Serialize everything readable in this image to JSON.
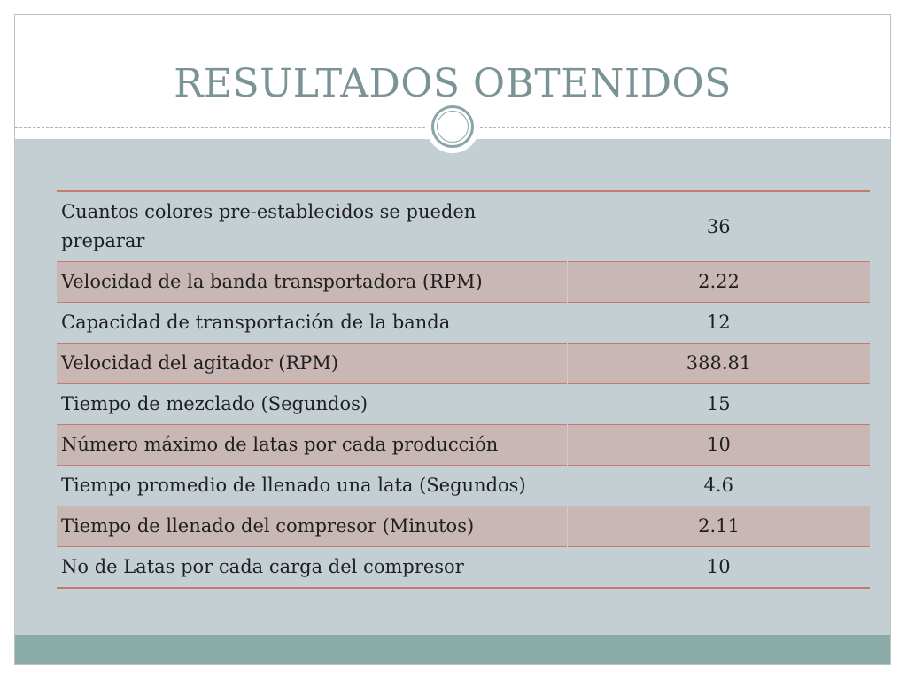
{
  "slide": {
    "title": "RESULTADOS OBTENIDOS"
  },
  "table": {
    "rows": [
      {
        "label": "Cuantos colores pre-establecidos se pueden preparar",
        "value": "36"
      },
      {
        "label": "Velocidad de la banda transportadora (RPM)",
        "value": "2.22"
      },
      {
        "label": "Capacidad de transportación de la banda",
        "value": "12"
      },
      {
        "label": "Velocidad del agitador (RPM)",
        "value": "388.81"
      },
      {
        "label": "Tiempo de mezclado (Segundos)",
        "value": "15"
      },
      {
        "label": "Número máximo de latas por cada producción",
        "value": "10"
      },
      {
        "label": "Tiempo promedio de llenado una lata (Segundos)",
        "value": "4.6"
      },
      {
        "label": "Tiempo de llenado del compresor (Minutos)",
        "value": "2.11"
      },
      {
        "label": "No de Latas por cada carga del compresor",
        "value": "10"
      }
    ]
  },
  "colors": {
    "title": "#7a9395",
    "body_background": "#c4cfd4",
    "shaded_row": "#c9b7b5",
    "row_border": "#c47b6d",
    "bottom_bar": "#8aaba8"
  }
}
